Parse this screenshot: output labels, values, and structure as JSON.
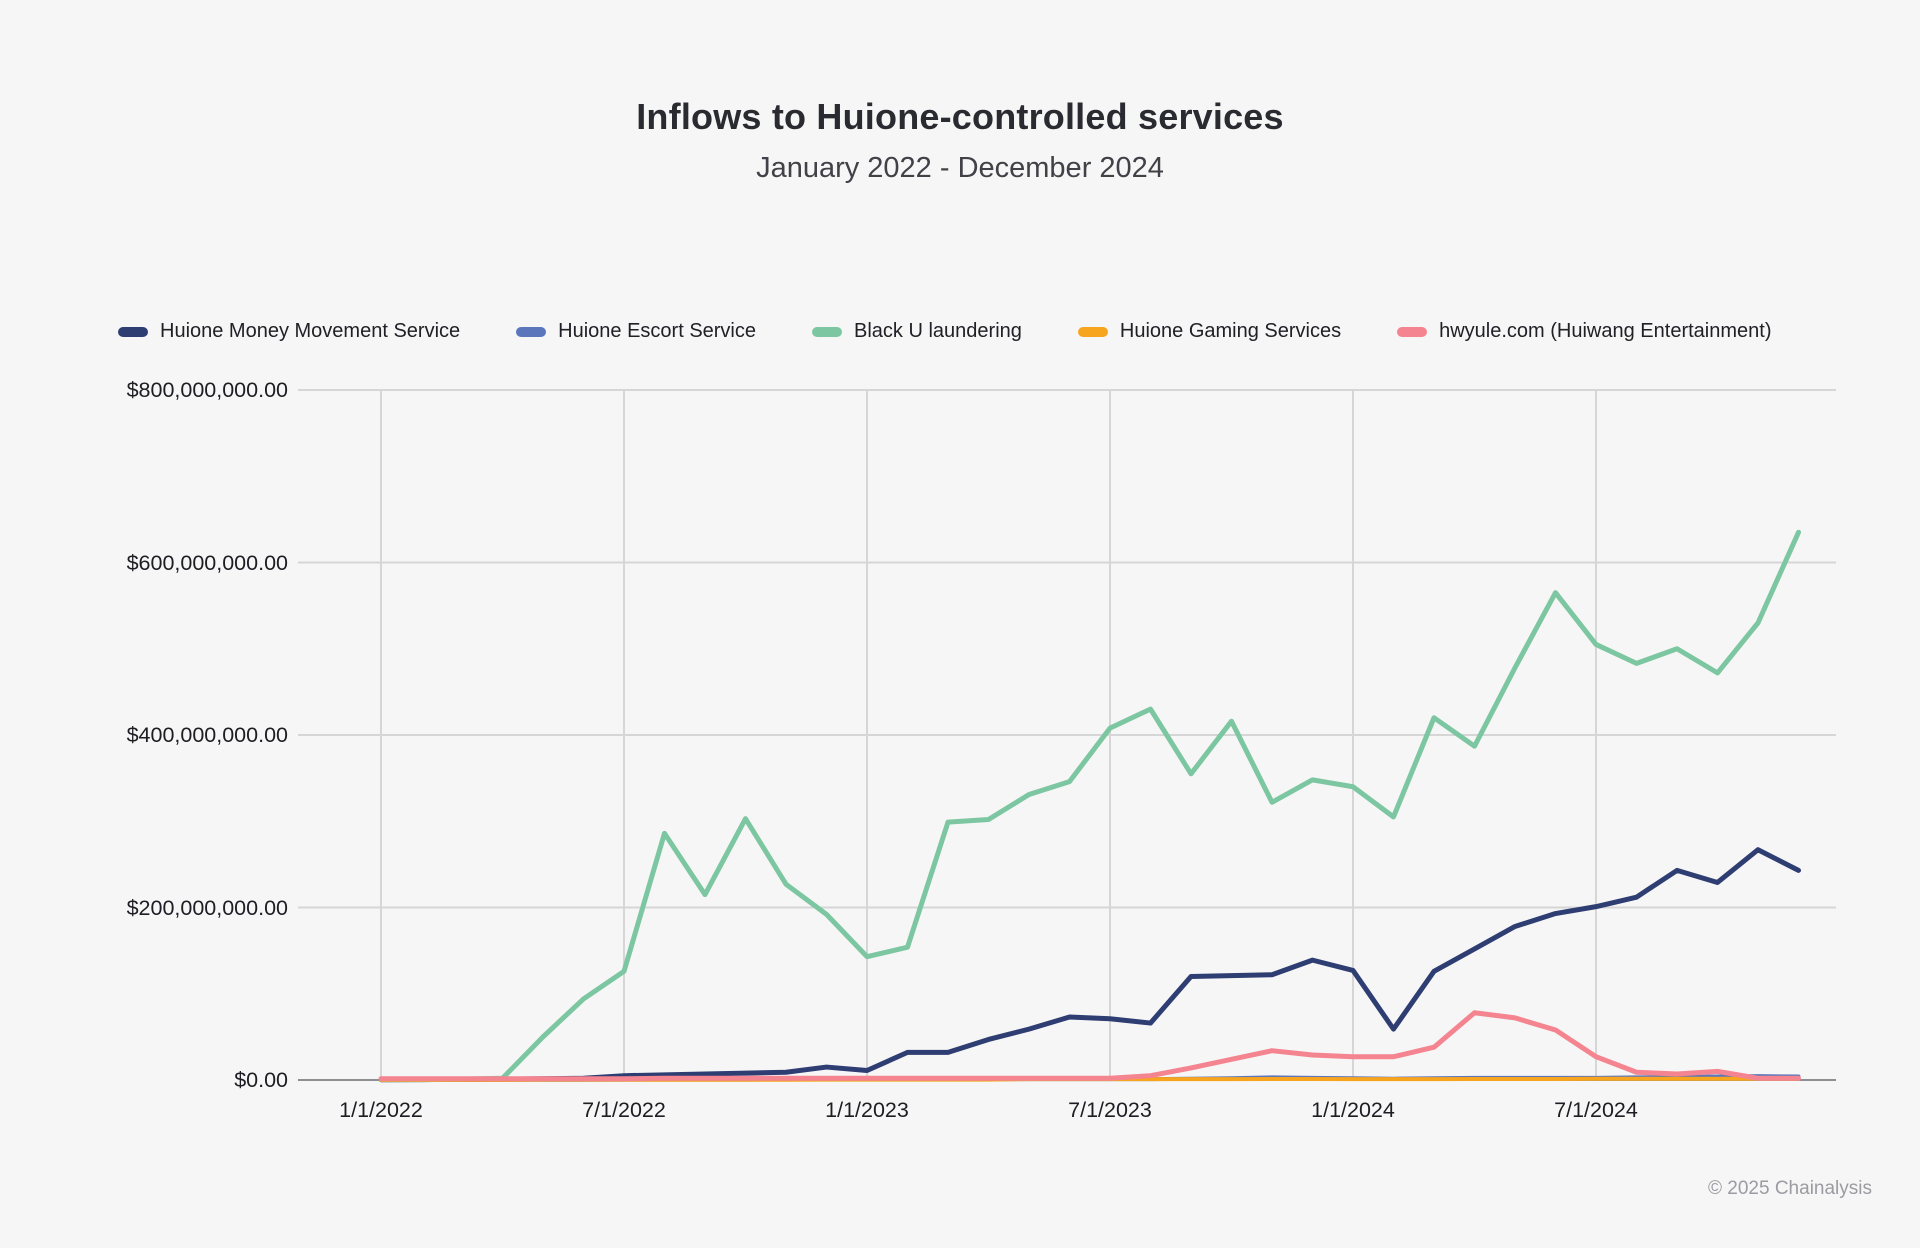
{
  "header": {
    "title": "Inflows to Huione-controlled services",
    "subtitle": "January 2022 - December 2024"
  },
  "footer": {
    "copyright": "© 2025 Chainalysis"
  },
  "colors": {
    "background": "#f7f6f6",
    "grid": "#d7d6d7",
    "axis": "#8e8e93",
    "title_text": "#2a2a31",
    "subtitle_text": "#414148",
    "tick_text": "#1d1d23",
    "footer_text": "#9b9ba1"
  },
  "chart_data": {
    "type": "line",
    "title": "Inflows to Huione-controlled services",
    "subtitle": "January 2022 - December 2024",
    "xlabel": "",
    "ylabel": "",
    "ylim": [
      0,
      800
    ],
    "values_unit": "USD millions",
    "grid": true,
    "legend_position": "top-left",
    "months": [
      "Jan 2022",
      "Feb 2022",
      "Mar 2022",
      "Apr 2022",
      "May 2022",
      "Jun 2022",
      "Jul 2022",
      "Aug 2022",
      "Sep 2022",
      "Oct 2022",
      "Nov 2022",
      "Dec 2022",
      "Jan 2023",
      "Feb 2023",
      "Mar 2023",
      "Apr 2023",
      "May 2023",
      "Jun 2023",
      "Jul 2023",
      "Aug 2023",
      "Sep 2023",
      "Oct 2023",
      "Nov 2023",
      "Dec 2023",
      "Jan 2024",
      "Feb 2024",
      "Mar 2024",
      "Apr 2024",
      "May 2024",
      "Jun 2024",
      "Jul 2024",
      "Aug 2024",
      "Sep 2024",
      "Oct 2024",
      "Nov 2024",
      "Dec 2024"
    ],
    "y_ticks": [
      {
        "label": "$0.00",
        "value": 0
      },
      {
        "label": "$200,000,000.00",
        "value": 200
      },
      {
        "label": "$400,000,000.00",
        "value": 400
      },
      {
        "label": "$600,000,000.00",
        "value": 600
      },
      {
        "label": "$800,000,000.00",
        "value": 800
      }
    ],
    "x_ticks": [
      {
        "label": "1/1/2022",
        "index": 0
      },
      {
        "label": "7/1/2022",
        "index": 6
      },
      {
        "label": "1/1/2023",
        "index": 12
      },
      {
        "label": "7/1/2023",
        "index": 18
      },
      {
        "label": "1/1/2024",
        "index": 24
      },
      {
        "label": "7/1/2024",
        "index": 30
      }
    ],
    "series": [
      {
        "name": "Huione Money Movement Service",
        "color": "#2e3d72",
        "stroke_width": 5,
        "values": [
          0.3,
          0.5,
          0.8,
          1,
          1.5,
          2,
          5,
          6,
          7,
          8,
          9,
          15,
          11,
          32,
          32,
          47,
          59,
          73,
          71,
          66,
          120,
          121,
          122,
          139,
          127,
          59,
          126,
          152,
          178,
          193,
          201,
          212,
          243,
          229,
          267,
          243
        ]
      },
      {
        "name": "Huione Escort Service",
        "color": "#5b76bb",
        "stroke_width": 4,
        "values": [
          0.2,
          0.2,
          0.2,
          0.3,
          0.3,
          0.3,
          0.5,
          0.5,
          0.5,
          0.5,
          0.8,
          1,
          1,
          1,
          1,
          1,
          1,
          1,
          1,
          1,
          1.5,
          2,
          3,
          2.5,
          2,
          1.5,
          2,
          2.5,
          2.5,
          2.5,
          2.5,
          3,
          3.5,
          4,
          4.5,
          4
        ]
      },
      {
        "name": "Black U laundering",
        "color": "#7cc7a1",
        "stroke_width": 5,
        "values": [
          0.5,
          0.5,
          1,
          2,
          50,
          94,
          126,
          286,
          215,
          303,
          227,
          192,
          143,
          154,
          299,
          302,
          331,
          346,
          408,
          430,
          355,
          416,
          322,
          348,
          340,
          305,
          420,
          387,
          478,
          565,
          505,
          483,
          500,
          472,
          530,
          635
        ]
      },
      {
        "name": "Huione Gaming Services",
        "color": "#f7a41f",
        "stroke_width": 4,
        "values": [
          0.2,
          0.2,
          0.2,
          0.2,
          0.3,
          0.3,
          0.3,
          0.3,
          0.3,
          0.3,
          0.3,
          0.5,
          0.5,
          0.5,
          0.5,
          0.5,
          1,
          1,
          1,
          1,
          1,
          1,
          1.2,
          1.2,
          1,
          1,
          1,
          1.2,
          1.2,
          1.2,
          1.5,
          1.5,
          1.5,
          1.5,
          1.5,
          1.5
        ]
      },
      {
        "name": "hwyule.com (Huiwang Entertainment)",
        "color": "#f48490",
        "stroke_width": 5,
        "values": [
          1.5,
          1.5,
          1.5,
          1.5,
          1.5,
          1.5,
          1.5,
          2,
          2,
          2,
          2,
          2,
          2,
          2,
          2,
          2,
          2,
          2,
          2,
          5,
          14,
          24,
          34,
          29,
          27,
          27,
          38,
          78,
          72,
          58,
          27,
          9,
          7,
          10,
          2,
          2
        ]
      }
    ]
  }
}
